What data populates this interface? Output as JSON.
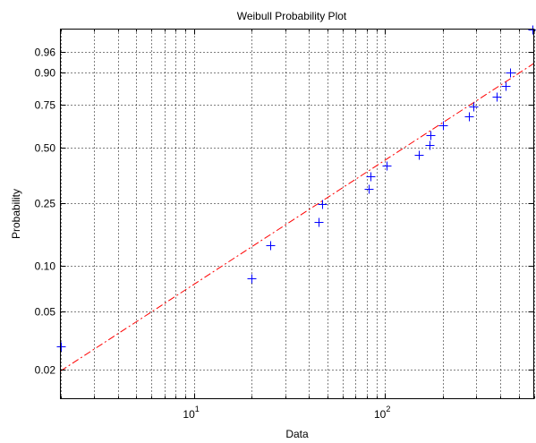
{
  "chart_data": {
    "type": "scatter",
    "title": "Weibull Probability Plot",
    "xlabel": "Data",
    "ylabel": "Probability",
    "x_scale": "log",
    "y_scale": "weibull",
    "xlim": [
      2,
      600
    ],
    "ylim": [
      0.0126,
      0.99
    ],
    "grid": true,
    "x_major_ticks": [
      10,
      100
    ],
    "x_tick_labels": [
      {
        "base": "10",
        "exp": "1"
      },
      {
        "base": "10",
        "exp": "2"
      }
    ],
    "y_ticks": [
      0.02,
      0.05,
      0.1,
      0.25,
      0.5,
      0.75,
      0.9,
      0.96
    ],
    "y_tick_labels": [
      "0.02",
      "0.05",
      "0.10",
      "0.25",
      "0.50",
      "0.75",
      "0.90",
      "0.96"
    ],
    "series": [
      {
        "type": "scatter",
        "marker": "+",
        "color": "#0000ff",
        "x": [
          2,
          20,
          25,
          45,
          47,
          82,
          84,
          102,
          150,
          170,
          172,
          200,
          275,
          290,
          385,
          425,
          450,
          590
        ],
        "y": [
          0.029,
          0.083,
          0.137,
          0.192,
          0.246,
          0.301,
          0.355,
          0.409,
          0.464,
          0.518,
          0.572,
          0.627,
          0.681,
          0.736,
          0.79,
          0.844,
          0.899,
          0.99
        ]
      },
      {
        "type": "fit-line",
        "style": "dash-dot",
        "color": "#ff0000",
        "x": [
          2,
          600
        ],
        "y": [
          0.0195,
          0.93
        ]
      }
    ]
  }
}
